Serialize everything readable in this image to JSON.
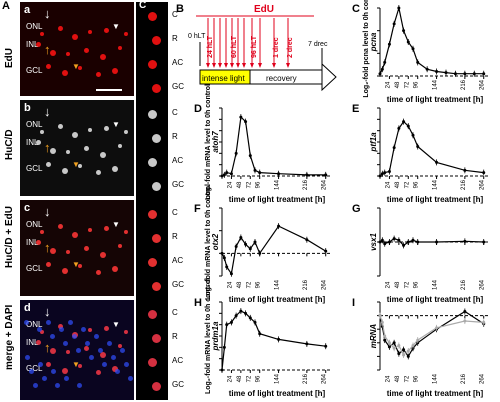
{
  "micro": {
    "rows": [
      {
        "side": "EdU",
        "letter": "a",
        "bg": "#1a0000"
      },
      {
        "side": "HuC/D",
        "letter": "b",
        "bg": "#0d0d0d"
      },
      {
        "side": "HuC/D + EdU",
        "letter": "c",
        "bg": "#150505"
      },
      {
        "side": "merge + DAPI",
        "letter": "d",
        "bg": "#0a0520"
      }
    ],
    "layers": [
      "ONL",
      "INL",
      "GCL"
    ],
    "inset_col_letter": "C",
    "inset_labels": [
      "C",
      "R",
      "AC",
      "GC"
    ]
  },
  "timeline": {
    "letter": "B",
    "edu": "EdU",
    "labels": [
      "0 hLT",
      "24 hLT",
      "60 hLT",
      "96 hLT",
      "1 drec",
      "2 drec",
      "7 drec"
    ],
    "phase1": "intense light",
    "phase2": "recovery"
  },
  "common": {
    "xlabel": "time of light treatment [h]",
    "xticks": [
      "24",
      "48",
      "72",
      "96",
      "144",
      "216",
      "264"
    ],
    "ylabel_c": "Log₂-fold pcna level to 0h control",
    "ylabel_dfh": "Log₂-fold mRNA level to 0h control"
  },
  "chart_data": [
    {
      "id": "C",
      "type": "line",
      "gene": "pcna",
      "ylim": [
        0,
        3
      ],
      "x": [
        0,
        6,
        12,
        24,
        36,
        48,
        60,
        72,
        84,
        96,
        120,
        144,
        168,
        192,
        216,
        240,
        264
      ],
      "values": [
        0.1,
        0.3,
        0.6,
        1.4,
        2.3,
        3.0,
        2.0,
        1.5,
        1.2,
        0.6,
        0.3,
        0.2,
        0.15,
        0.1,
        0.1,
        0.1,
        0.1
      ]
    },
    {
      "id": "D",
      "type": "line",
      "gene": "atoh7",
      "ylim": [
        0,
        6
      ],
      "x": [
        0,
        6,
        12,
        24,
        36,
        48,
        60,
        72,
        84,
        96,
        144,
        216,
        264
      ],
      "values": [
        0.0,
        0.1,
        0.3,
        0.2,
        2.0,
        5.2,
        4.8,
        1.8,
        0.5,
        0.3,
        0.2,
        0.1,
        0.1
      ]
    },
    {
      "id": "E",
      "type": "line",
      "gene": "ptf1a",
      "ylim": [
        0,
        6
      ],
      "x": [
        0,
        6,
        12,
        24,
        36,
        48,
        60,
        72,
        84,
        96,
        144,
        216,
        264
      ],
      "values": [
        0.0,
        0.2,
        0.3,
        0.4,
        2.5,
        4.2,
        4.8,
        4.4,
        3.6,
        2.6,
        1.2,
        0.5,
        0.3
      ]
    },
    {
      "id": "F",
      "type": "line",
      "gene": "otx2",
      "ylim": [
        -1,
        2
      ],
      "x": [
        0,
        6,
        12,
        24,
        36,
        48,
        60,
        72,
        84,
        96,
        144,
        216,
        264
      ],
      "values": [
        0.0,
        -0.2,
        -0.6,
        -0.9,
        0.3,
        0.7,
        0.4,
        0.2,
        0.5,
        0.0,
        1.2,
        0.6,
        0.1
      ]
    },
    {
      "id": "G",
      "type": "line",
      "gene": "vsx1",
      "ylim": [
        -1,
        1
      ],
      "x": [
        0,
        6,
        12,
        24,
        36,
        48,
        60,
        72,
        84,
        96,
        144,
        216,
        264
      ],
      "values": [
        0.0,
        0.05,
        -0.05,
        0.0,
        0.1,
        0.05,
        -0.1,
        0.0,
        0.05,
        0.0,
        0.0,
        0.02,
        0.0
      ]
    },
    {
      "id": "H",
      "type": "line",
      "gene": "prdm1a",
      "ylim": [
        0,
        6
      ],
      "x": [
        0,
        6,
        12,
        24,
        36,
        48,
        60,
        72,
        84,
        96,
        144,
        216,
        264
      ],
      "values": [
        0.0,
        2.0,
        4.0,
        4.2,
        4.8,
        5.2,
        5.0,
        4.6,
        4.2,
        3.2,
        2.7,
        2.3,
        2.1
      ]
    },
    {
      "id": "I",
      "type": "line",
      "gene": "mRNA",
      "ylim": [
        -4,
        1
      ],
      "x": [
        0,
        6,
        12,
        24,
        36,
        48,
        60,
        72,
        84,
        96,
        144,
        216,
        264
      ],
      "values": [
        0.0,
        -0.8,
        -1.8,
        -2.3,
        -2.0,
        -2.8,
        -2.5,
        -3.0,
        -2.4,
        -2.0,
        -1.0,
        0.3,
        -0.6
      ],
      "values2": [
        0.0,
        -0.5,
        -1.5,
        -2.0,
        -2.4,
        -2.2,
        -2.9,
        -2.6,
        -2.2,
        -1.8,
        -0.9,
        -0.4,
        -0.5
      ]
    }
  ]
}
